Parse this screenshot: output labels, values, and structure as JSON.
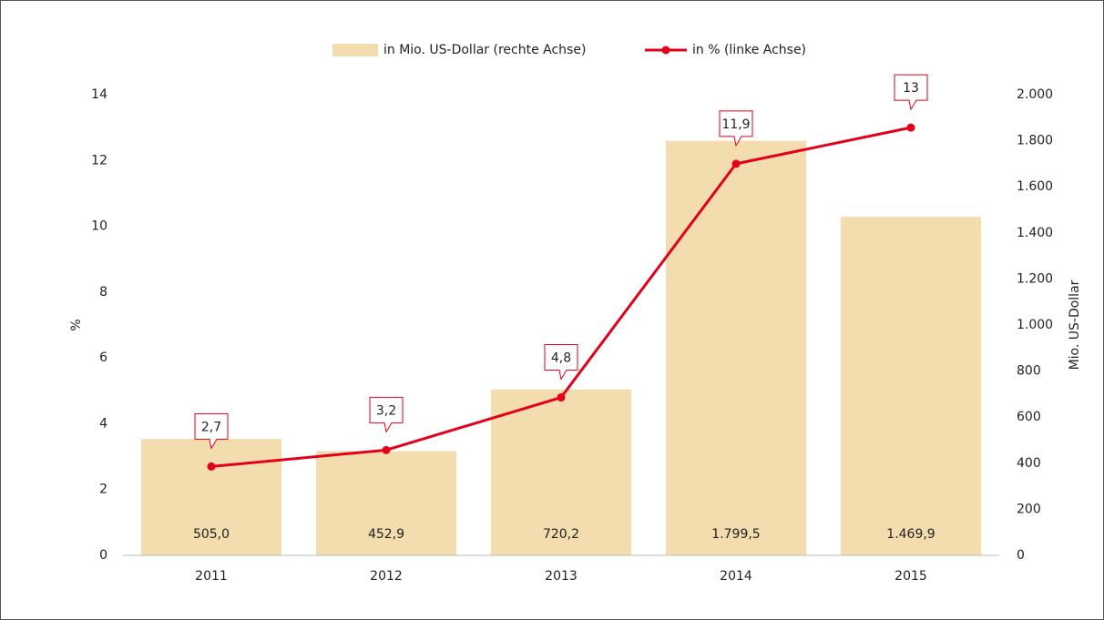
{
  "chart_data": {
    "type": "combo",
    "categories": [
      "2011",
      "2012",
      "2013",
      "2014",
      "2015"
    ],
    "series": [
      {
        "name": "in Mio. US-Dollar (rechte Achse)",
        "type": "bar",
        "axis": "y2",
        "color": "#f3dcae",
        "values": [
          505.0,
          452.9,
          720.2,
          1799.5,
          1469.9
        ],
        "value_labels": [
          "505,0",
          "452,9",
          "720,2",
          "1.799,5",
          "1.469,9"
        ]
      },
      {
        "name": "in % (linke Achse)",
        "type": "line",
        "axis": "y",
        "color": "#e2001a",
        "values": [
          2.7,
          3.2,
          4.8,
          11.9,
          13
        ],
        "value_labels": [
          "2,7",
          "3,2",
          "4,8",
          "11,9",
          "13"
        ]
      }
    ],
    "ylabel": "%",
    "y2label": "Mio. US-Dollar",
    "ylim": [
      0,
      14
    ],
    "yticks": [
      0,
      2,
      4,
      6,
      8,
      10,
      12,
      14
    ],
    "y2lim": [
      0,
      2000
    ],
    "y2ticks": [
      0,
      200,
      400,
      600,
      800,
      {
        "value": 1000,
        "label": "1.000"
      },
      {
        "value": 1200,
        "label": "1.200"
      },
      {
        "value": 1400,
        "label": "1.400"
      },
      {
        "value": 1600,
        "label": "1.600"
      },
      {
        "value": 1800,
        "label": "1.800"
      },
      {
        "value": 2000,
        "label": "2.000"
      }
    ],
    "grid": false,
    "legend": "top"
  }
}
